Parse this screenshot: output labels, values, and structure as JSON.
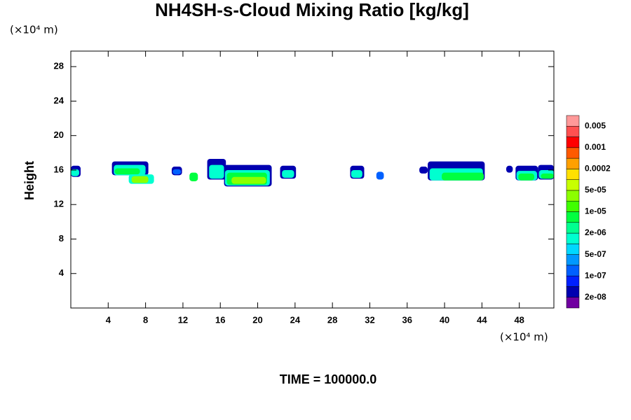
{
  "chart_data": {
    "type": "contour",
    "title": "NH4SH-s-Cloud Mixing Ratio [kg/kg]",
    "y_unit": "(×10⁴ m)",
    "x_unit": "(×10⁴ m)",
    "y_label": "Height",
    "footer": "TIME = 100000.0",
    "xlim": [
      0,
      51.7
    ],
    "ylim": [
      0,
      29.8
    ],
    "xticks": [
      4,
      8,
      12,
      16,
      20,
      24,
      28,
      32,
      36,
      40,
      44,
      48
    ],
    "yticks": [
      4,
      8,
      12,
      16,
      20,
      24,
      28
    ],
    "colorbar": {
      "levels": [
        2e-08,
        5e-08,
        1e-07,
        2e-07,
        5e-07,
        1e-06,
        2e-06,
        5e-06,
        1e-05,
        2e-05,
        5e-05,
        0.0001,
        0.0002,
        0.0005,
        0.001,
        0.002,
        0.005
      ],
      "labels": [
        {
          "value": 2e-08,
          "label": "2e-08"
        },
        {
          "value": 1e-07,
          "label": "1e-07"
        },
        {
          "value": 5e-07,
          "label": "5e-07"
        },
        {
          "value": 2e-06,
          "label": "2e-06"
        },
        {
          "value": 1e-05,
          "label": "1e-05"
        },
        {
          "value": 5e-05,
          "label": "5e-05"
        },
        {
          "value": 0.0002,
          "label": "0.0002"
        },
        {
          "value": 0.001,
          "label": "0.001"
        },
        {
          "value": 0.005,
          "label": "0.005"
        }
      ],
      "colors": [
        "#7000a0",
        "#0000b0",
        "#0020ff",
        "#0060ff",
        "#0098ff",
        "#00d8ff",
        "#00ffd0",
        "#00ff90",
        "#00ff40",
        "#40ff00",
        "#8cff00",
        "#c8ff00",
        "#ffe000",
        "#ffa000",
        "#ff5a00",
        "#ff0000",
        "#ff5050",
        "#ff9999"
      ]
    },
    "cells": [
      {
        "x": [
          0,
          1.05
        ],
        "y": [
          15.2,
          16.5
        ],
        "value": 3e-08
      },
      {
        "x": [
          0,
          0.9
        ],
        "y": [
          15.3,
          16.1
        ],
        "value": 1e-06
      },
      {
        "x": [
          4.4,
          8.3
        ],
        "y": [
          15.4,
          17.0
        ],
        "value": 3e-08
      },
      {
        "x": [
          4.6,
          8.0
        ],
        "y": [
          15.4,
          16.6
        ],
        "value": 1e-06
      },
      {
        "x": [
          4.7,
          7.4
        ],
        "y": [
          15.5,
          16.2
        ],
        "value": 5e-06
      },
      {
        "x": [
          6.2,
          8.9
        ],
        "y": [
          14.4,
          15.5
        ],
        "value": 1e-06
      },
      {
        "x": [
          6.5,
          8.3
        ],
        "y": [
          14.5,
          15.3
        ],
        "value": 3e-05
      },
      {
        "x": [
          10.8,
          11.9
        ],
        "y": [
          15.4,
          16.4
        ],
        "value": 3e-08
      },
      {
        "x": [
          10.9,
          11.8
        ],
        "y": [
          15.5,
          16.1
        ],
        "value": 1.5e-07
      },
      {
        "x": [
          12.7,
          13.6
        ],
        "y": [
          14.7,
          15.7
        ],
        "value": 5e-06
      },
      {
        "x": [
          14.6,
          16.6
        ],
        "y": [
          14.9,
          17.3
        ],
        "value": 3e-08
      },
      {
        "x": [
          14.8,
          16.4
        ],
        "y": [
          15.0,
          16.6
        ],
        "value": 1e-06
      },
      {
        "x": [
          16.4,
          21.5
        ],
        "y": [
          14.1,
          16.6
        ],
        "value": 3e-08
      },
      {
        "x": [
          16.5,
          21.3
        ],
        "y": [
          14.2,
          16.0
        ],
        "value": 1e-06
      },
      {
        "x": [
          16.7,
          21.0
        ],
        "y": [
          14.3,
          15.7
        ],
        "value": 5e-06
      },
      {
        "x": [
          17.2,
          20.9
        ],
        "y": [
          14.4,
          15.2
        ],
        "value": 3e-05
      },
      {
        "x": [
          22.4,
          24.1
        ],
        "y": [
          15.0,
          16.5
        ],
        "value": 3e-08
      },
      {
        "x": [
          22.6,
          23.9
        ],
        "y": [
          15.1,
          16.0
        ],
        "value": 1e-06
      },
      {
        "x": [
          29.9,
          31.4
        ],
        "y": [
          15.0,
          16.5
        ],
        "value": 3e-08
      },
      {
        "x": [
          30.0,
          31.2
        ],
        "y": [
          15.1,
          16.0
        ],
        "value": 1e-06
      },
      {
        "x": [
          32.7,
          33.5
        ],
        "y": [
          14.9,
          15.8
        ],
        "value": 1.5e-07
      },
      {
        "x": [
          37.3,
          38.2
        ],
        "y": [
          15.6,
          16.4
        ],
        "value": 3e-08
      },
      {
        "x": [
          38.2,
          44.3
        ],
        "y": [
          14.8,
          17.0
        ],
        "value": 3e-08
      },
      {
        "x": [
          38.4,
          44.1
        ],
        "y": [
          14.8,
          16.2
        ],
        "value": 1e-06
      },
      {
        "x": [
          39.7,
          44.2
        ],
        "y": [
          14.8,
          15.7
        ],
        "value": 5e-06
      },
      {
        "x": [
          46.6,
          47.3
        ],
        "y": [
          15.7,
          16.5
        ],
        "value": 3e-08
      },
      {
        "x": [
          47.6,
          50.0
        ],
        "y": [
          14.8,
          16.5
        ],
        "value": 3e-08
      },
      {
        "x": [
          47.7,
          49.9
        ],
        "y": [
          14.8,
          15.9
        ],
        "value": 1e-06
      },
      {
        "x": [
          47.9,
          49.6
        ],
        "y": [
          14.8,
          15.6
        ],
        "value": 5e-06
      },
      {
        "x": [
          50.0,
          51.7
        ],
        "y": [
          14.9,
          16.6
        ],
        "value": 3e-08
      },
      {
        "x": [
          50.1,
          51.7
        ],
        "y": [
          15.0,
          16.0
        ],
        "value": 1e-06
      },
      {
        "x": [
          50.3,
          51.7
        ],
        "y": [
          15.0,
          15.6
        ],
        "value": 5e-06
      }
    ]
  }
}
